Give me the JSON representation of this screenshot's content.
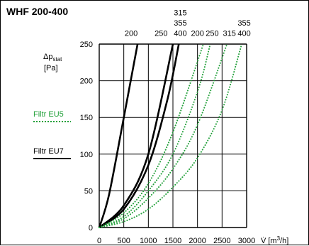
{
  "chart_data": {
    "type": "line",
    "title": "WHF 200-400",
    "ylabel": {
      "main": "Δp",
      "sub": "stat",
      "unit": "[Pa]"
    },
    "xlabel": {
      "symbol": "V̇",
      "unit_pre": "[m",
      "unit_sup": "3",
      "unit_post": "/h]"
    },
    "xlim": [
      0,
      3000
    ],
    "ylim": [
      0,
      250
    ],
    "xticks": [
      0,
      500,
      1000,
      1500,
      2000,
      2500,
      3000
    ],
    "yticks": [
      0,
      50,
      100,
      150,
      200,
      250
    ],
    "x_tick_labels": [
      "0",
      "500",
      "1000",
      "1500",
      "2000",
      "2500",
      "3000"
    ],
    "y_tick_labels": [
      "0",
      "50",
      "100",
      "150",
      "200",
      "250"
    ],
    "legend": [
      {
        "label": "Filtr EU5",
        "color": "#22a03a",
        "style": "dotted"
      },
      {
        "label": "Filtr EU7",
        "color": "#000000",
        "style": "solid"
      }
    ],
    "series": [
      {
        "filter": "EU7",
        "color": "#000000",
        "style": "solid",
        "x": [
          0,
          200,
          500,
          780
        ],
        "y": [
          0,
          45,
          150,
          250
        ]
      },
      {
        "filter": "EU7",
        "color": "#000000",
        "style": "solid",
        "x": [
          0,
          500,
          1000,
          1500
        ],
        "y": [
          0,
          30,
          100,
          250
        ]
      },
      {
        "filter": "EU7",
        "color": "#000000",
        "style": "solid",
        "x": [
          0,
          500,
          1000,
          1390,
          1620
        ],
        "y": [
          0,
          25,
          85,
          175,
          250
        ]
      },
      {
        "filter": "EU5",
        "color": "#22a03a",
        "style": "dotted",
        "x": [
          0,
          500,
          1000,
          1500,
          2120
        ],
        "y": [
          0,
          20,
          60,
          130,
          250
        ]
      },
      {
        "filter": "EU5",
        "color": "#22a03a",
        "style": "dotted",
        "x": [
          0,
          500,
          1000,
          1500,
          2000,
          2260
        ],
        "y": [
          0,
          15,
          50,
          100,
          185,
          250
        ]
      },
      {
        "filter": "EU5",
        "color": "#22a03a",
        "style": "dotted",
        "x": [
          0,
          500,
          1000,
          1500,
          2000,
          2600
        ],
        "y": [
          0,
          12,
          40,
          80,
          140,
          250
        ]
      },
      {
        "filter": "EU5",
        "color": "#22a03a",
        "style": "dotted",
        "x": [
          0,
          500,
          1000,
          1500,
          2000,
          2500,
          2900
        ],
        "y": [
          0,
          8,
          25,
          55,
          95,
          160,
          250
        ]
      }
    ],
    "annotations": [
      {
        "text": "200",
        "x": 650,
        "y": 265
      },
      {
        "text": "250",
        "x": 1260,
        "y": 265
      },
      {
        "text": "315",
        "x": 1650,
        "y": 293
      },
      {
        "text": "355",
        "x": 1650,
        "y": 279
      },
      {
        "text": "400",
        "x": 1650,
        "y": 265
      },
      {
        "text": "200",
        "x": 2000,
        "y": 265
      },
      {
        "text": "250",
        "x": 2300,
        "y": 265
      },
      {
        "text": "315",
        "x": 2650,
        "y": 265
      },
      {
        "text": "355",
        "x": 2950,
        "y": 279
      },
      {
        "text": "400",
        "x": 2950,
        "y": 265
      }
    ]
  }
}
